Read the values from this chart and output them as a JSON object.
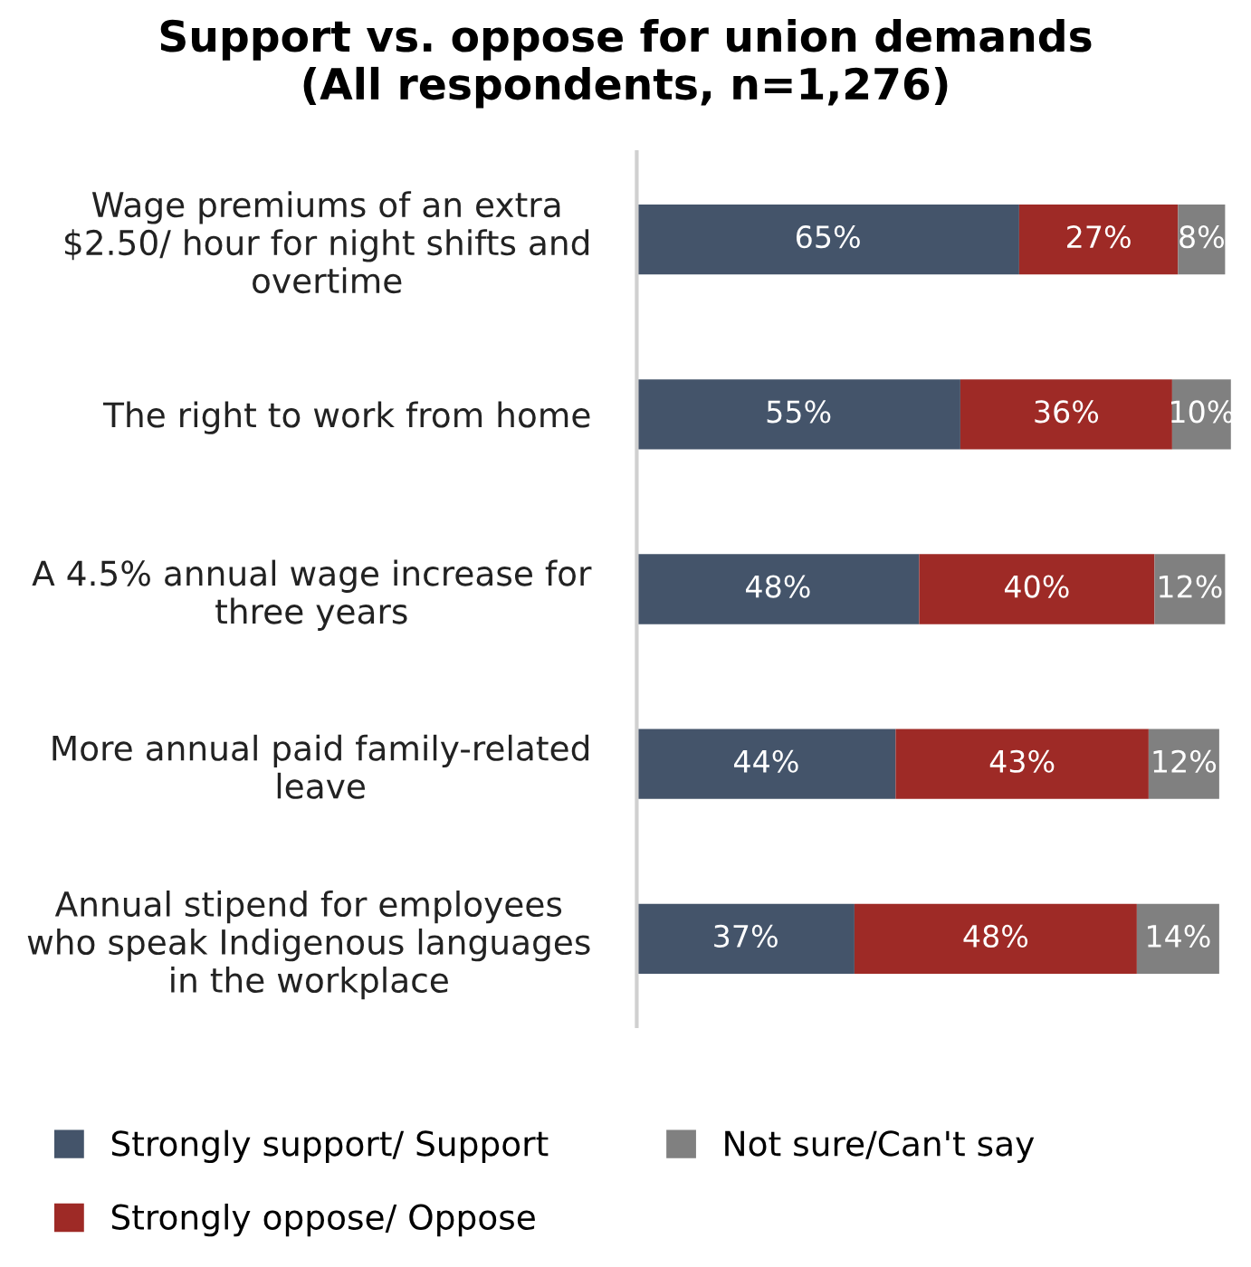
{
  "chart_data": {
    "type": "bar",
    "orientation": "horizontal",
    "stacked": true,
    "title": "Support vs. oppose for union demands\n(All respondents, n=1,276)",
    "categories": [
      "Wage premiums of an extra\n$2.50/ hour for night shifts and\novertime",
      "The right to work from home",
      "A 4.5% annual wage increase for\nthree years",
      "More annual paid family-related\nleave",
      "Annual stipend for employees\nwho speak Indigenous languages\nin the workplace"
    ],
    "series": [
      {
        "name": "Strongly support/ Support",
        "color": "#44546a",
        "values": [
          65,
          55,
          48,
          44,
          37
        ],
        "value_labels": [
          "65%",
          "55%",
          "48%",
          "44%",
          "37%"
        ]
      },
      {
        "name": "Strongly oppose/ Oppose",
        "color": "#9e2a26",
        "values": [
          27,
          36,
          40,
          43,
          48
        ],
        "value_labels": [
          "27%",
          "36%",
          "40%",
          "43%",
          "48%"
        ]
      },
      {
        "name": "Not sure/Can't say",
        "color": "#808080",
        "values": [
          8,
          10,
          12,
          12,
          14
        ],
        "value_labels": [
          "8%",
          "10%",
          "12%",
          "12%",
          "14%"
        ]
      }
    ],
    "legend": "bottom",
    "tick_labels": "y"
  }
}
